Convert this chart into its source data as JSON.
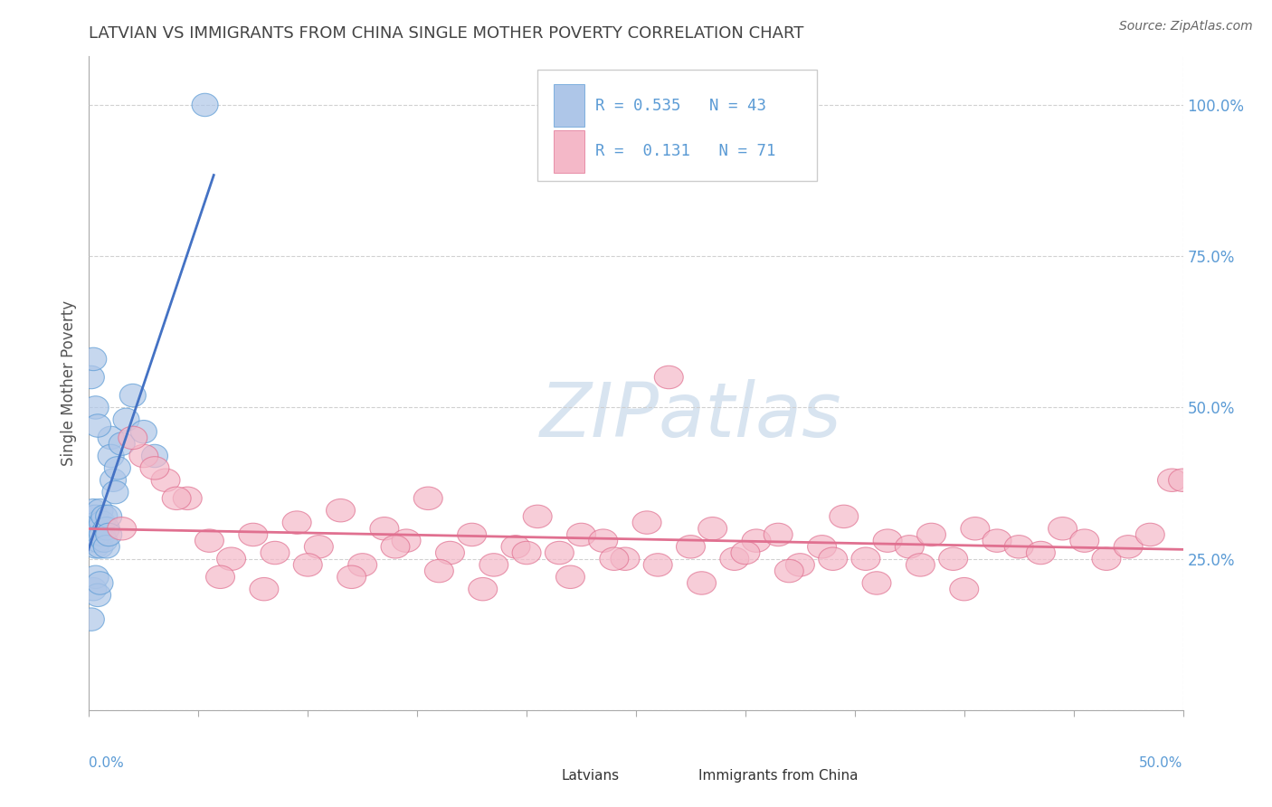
{
  "title": "LATVIAN VS IMMIGRANTS FROM CHINA SINGLE MOTHER POVERTY CORRELATION CHART",
  "source": "Source: ZipAtlas.com",
  "ylabel": "Single Mother Poverty",
  "legend_label1": "Latvians",
  "legend_label2": "Immigrants from China",
  "r1": 0.535,
  "n1": 43,
  "r2": 0.131,
  "n2": 71,
  "blue_fill": "#aec6e8",
  "blue_edge": "#5b9bd5",
  "pink_fill": "#f4b8c8",
  "pink_edge": "#e07090",
  "blue_line": "#4472c4",
  "pink_line": "#e07090",
  "bg_color": "#ffffff",
  "grid_color": "#cccccc",
  "title_color": "#444444",
  "ytick_color": "#5b9bd5",
  "watermark_color": "#d8e4f0",
  "xlim": [
    0.0,
    0.5
  ],
  "ylim": [
    0.0,
    1.08
  ],
  "yticks": [
    0.0,
    0.25,
    0.5,
    0.75,
    1.0
  ],
  "ytick_labels": [
    "",
    "25.0%",
    "50.0%",
    "75.0%",
    "100.0%"
  ],
  "latvian_x": [
    0.001,
    0.001,
    0.001,
    0.002,
    0.002,
    0.002,
    0.003,
    0.003,
    0.003,
    0.004,
    0.004,
    0.004,
    0.005,
    0.005,
    0.005,
    0.006,
    0.006,
    0.007,
    0.007,
    0.008,
    0.008,
    0.009,
    0.009,
    0.01,
    0.01,
    0.011,
    0.012,
    0.013,
    0.015,
    0.017,
    0.02,
    0.025,
    0.03,
    0.001,
    0.002,
    0.003,
    0.004,
    0.002,
    0.003,
    0.004,
    0.005,
    0.053,
    0.001
  ],
  "latvian_y": [
    0.3,
    0.32,
    0.28,
    0.31,
    0.29,
    0.33,
    0.3,
    0.27,
    0.32,
    0.29,
    0.31,
    0.28,
    0.3,
    0.33,
    0.27,
    0.31,
    0.29,
    0.32,
    0.28,
    0.3,
    0.27,
    0.32,
    0.29,
    0.45,
    0.42,
    0.38,
    0.36,
    0.4,
    0.44,
    0.48,
    0.52,
    0.46,
    0.42,
    0.55,
    0.58,
    0.5,
    0.47,
    0.2,
    0.22,
    0.19,
    0.21,
    1.0,
    0.15
  ],
  "china_x": [
    0.015,
    0.025,
    0.035,
    0.045,
    0.055,
    0.065,
    0.075,
    0.085,
    0.095,
    0.105,
    0.115,
    0.125,
    0.135,
    0.145,
    0.155,
    0.165,
    0.175,
    0.185,
    0.195,
    0.205,
    0.215,
    0.225,
    0.235,
    0.245,
    0.255,
    0.265,
    0.275,
    0.285,
    0.295,
    0.305,
    0.315,
    0.325,
    0.335,
    0.345,
    0.355,
    0.365,
    0.375,
    0.385,
    0.395,
    0.405,
    0.415,
    0.425,
    0.435,
    0.445,
    0.455,
    0.465,
    0.475,
    0.485,
    0.495,
    0.02,
    0.03,
    0.04,
    0.06,
    0.08,
    0.1,
    0.12,
    0.14,
    0.16,
    0.18,
    0.2,
    0.22,
    0.24,
    0.26,
    0.28,
    0.3,
    0.32,
    0.34,
    0.36,
    0.38,
    0.4,
    0.5
  ],
  "china_y": [
    0.3,
    0.42,
    0.38,
    0.35,
    0.28,
    0.25,
    0.29,
    0.26,
    0.31,
    0.27,
    0.33,
    0.24,
    0.3,
    0.28,
    0.35,
    0.26,
    0.29,
    0.24,
    0.27,
    0.32,
    0.26,
    0.29,
    0.28,
    0.25,
    0.31,
    0.55,
    0.27,
    0.3,
    0.25,
    0.28,
    0.29,
    0.24,
    0.27,
    0.32,
    0.25,
    0.28,
    0.27,
    0.29,
    0.25,
    0.3,
    0.28,
    0.27,
    0.26,
    0.3,
    0.28,
    0.25,
    0.27,
    0.29,
    0.38,
    0.45,
    0.4,
    0.35,
    0.22,
    0.2,
    0.24,
    0.22,
    0.27,
    0.23,
    0.2,
    0.26,
    0.22,
    0.25,
    0.24,
    0.21,
    0.26,
    0.23,
    0.25,
    0.21,
    0.24,
    0.2,
    0.38
  ]
}
